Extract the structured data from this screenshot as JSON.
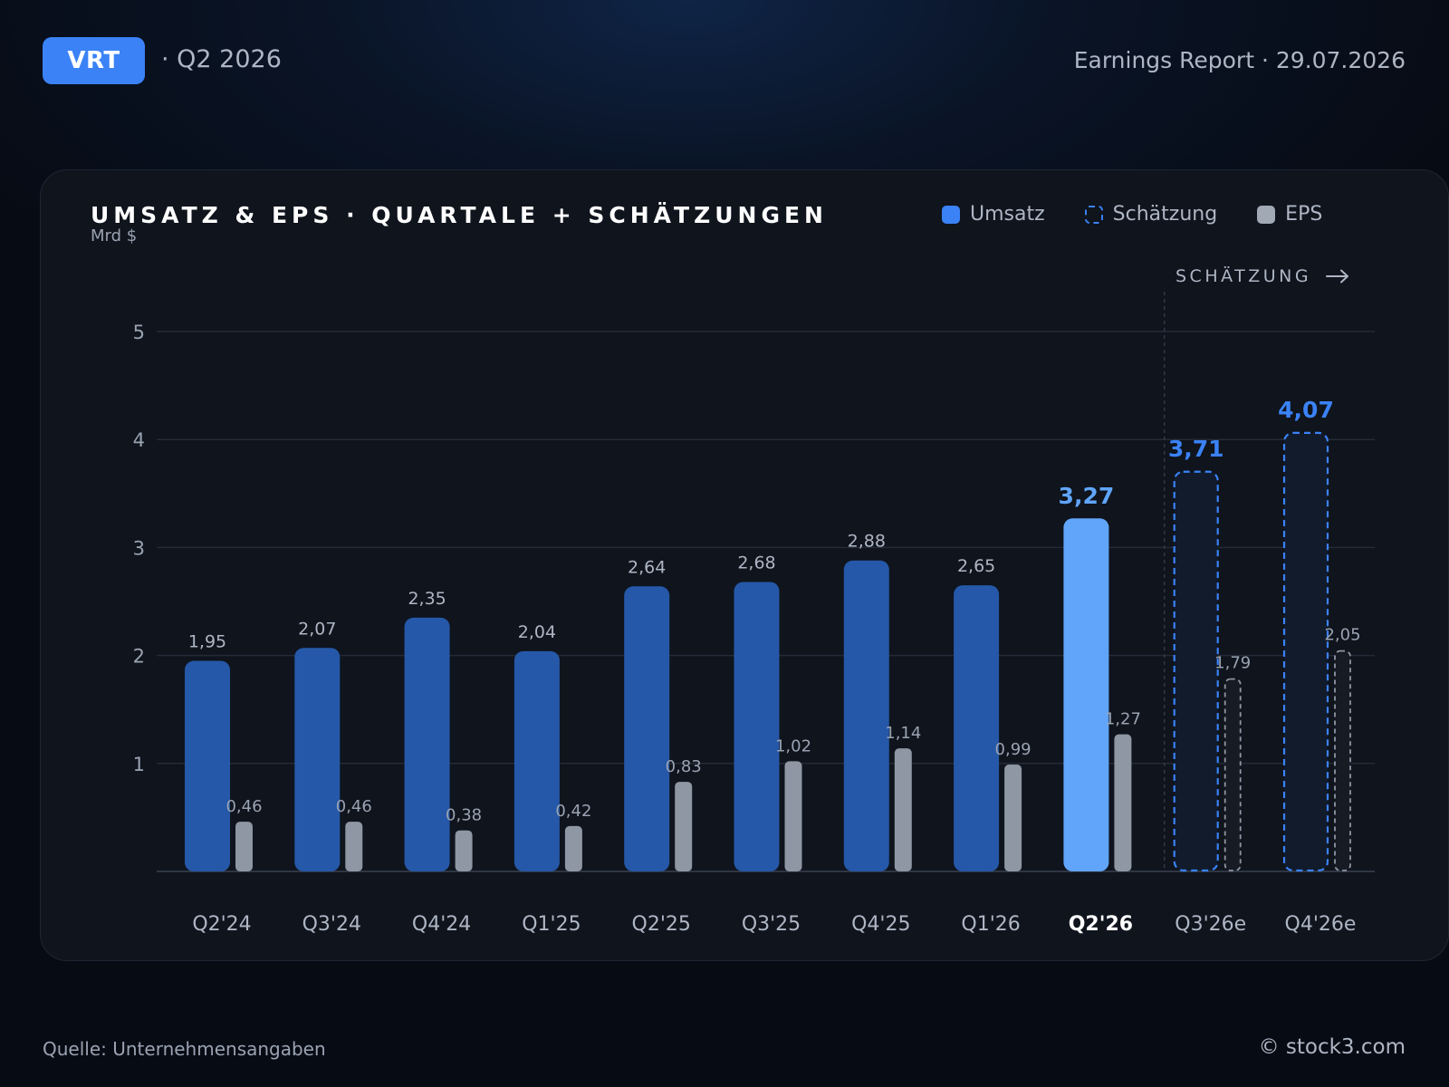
{
  "header": {
    "ticker": "VRT",
    "period": "· Q2 2026",
    "report": "Earnings Report · 29.07.2026"
  },
  "chart_card": {
    "title": "UMSATZ & EPS · QUARTALE + SCHÄTZUNGEN",
    "unit": "Mrd $",
    "estimate_marker": "SCHÄTZUNG",
    "legend": [
      {
        "label": "Umsatz"
      },
      {
        "label": "Schätzung"
      },
      {
        "label": "EPS"
      }
    ]
  },
  "chart_data": {
    "type": "bar",
    "title": "UMSATZ & EPS · QUARTALE + SCHÄTZUNGEN",
    "ylabel": "Mrd $",
    "ylim": [
      0,
      5
    ],
    "yticks": [
      1,
      2,
      3,
      4,
      5
    ],
    "grid": true,
    "legend_position": "top-right",
    "categories": [
      "Q2'24",
      "Q3'24",
      "Q4'24",
      "Q1'25",
      "Q2'25",
      "Q3'25",
      "Q4'25",
      "Q1'26",
      "Q2'26",
      "Q3'26e",
      "Q4'26e"
    ],
    "current_index": 8,
    "estimate_start_index": 9,
    "series": [
      {
        "name": "Umsatz",
        "values": [
          1.95,
          2.07,
          2.35,
          2.04,
          2.64,
          2.68,
          2.88,
          2.65,
          3.27,
          3.71,
          4.07
        ],
        "value_labels": [
          "1,95",
          "2,07",
          "2,35",
          "2,04",
          "2,64",
          "2,68",
          "2,88",
          "2,65",
          "3,27",
          "3,71",
          "4,07"
        ]
      },
      {
        "name": "EPS",
        "values": [
          0.46,
          0.46,
          0.38,
          0.42,
          0.83,
          1.02,
          1.14,
          0.99,
          1.27,
          1.79,
          2.05
        ],
        "value_labels": [
          "0,46",
          "0,46",
          "0,38",
          "0,42",
          "0,83",
          "1,02",
          "1,14",
          "0,99",
          "1,27",
          "1,79",
          "2,05"
        ]
      }
    ],
    "colors": {
      "revenue": "#2558a8",
      "revenue_current": "#60a5fa",
      "estimate": "#3b82f6",
      "eps": "#8e97a3",
      "grid": "#252b36"
    }
  },
  "footer": {
    "source": "Quelle: Unternehmensangaben",
    "copyright": "© stock3.com"
  }
}
